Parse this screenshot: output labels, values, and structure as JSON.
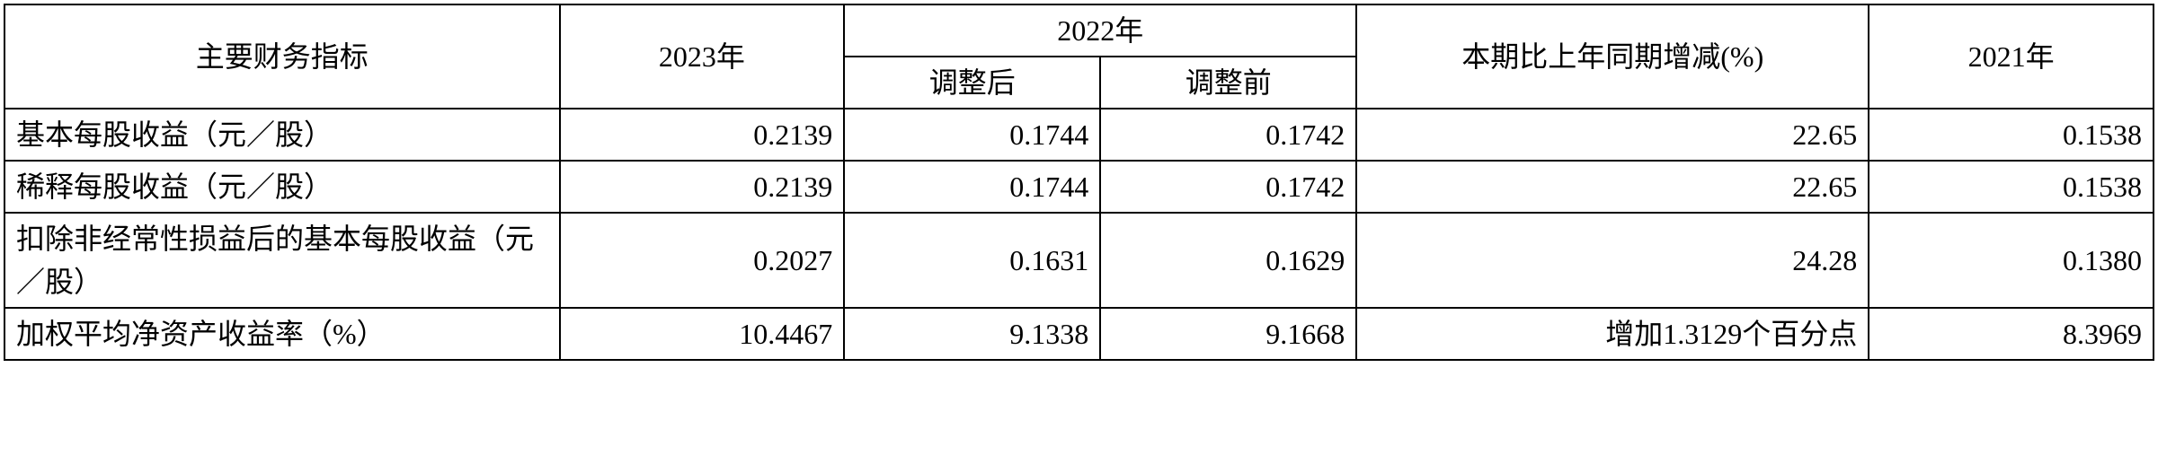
{
  "table": {
    "type": "table",
    "background_color": "#ffffff",
    "border_color": "#000000",
    "font_family": "SimSun",
    "font_size": 32,
    "header": {
      "indicator": "主要财务指标",
      "y2023": "2023年",
      "y2022": "2022年",
      "y2022_adjusted": "调整后",
      "y2022_before": "调整前",
      "change": "本期比上年同期增减(%)",
      "y2021": "2021年"
    },
    "rows": [
      {
        "label": "基本每股收益（元／股）",
        "y2023": "0.2139",
        "y2022_adjusted": "0.1744",
        "y2022_before": "0.1742",
        "change": "22.65",
        "y2021": "0.1538"
      },
      {
        "label": "稀释每股收益（元／股）",
        "y2023": "0.2139",
        "y2022_adjusted": "0.1744",
        "y2022_before": "0.1742",
        "change": "22.65",
        "y2021": "0.1538"
      },
      {
        "label": "扣除非经常性损益后的基本每股收益（元／股）",
        "y2023": "0.2027",
        "y2022_adjusted": "0.1631",
        "y2022_before": "0.1629",
        "change": "24.28",
        "y2021": "0.1380"
      },
      {
        "label": "加权平均净资产收益率（%）",
        "y2023": "10.4467",
        "y2022_adjusted": "9.1338",
        "y2022_before": "9.1668",
        "change": "增加1.3129个百分点",
        "y2021": "8.3969"
      }
    ]
  }
}
